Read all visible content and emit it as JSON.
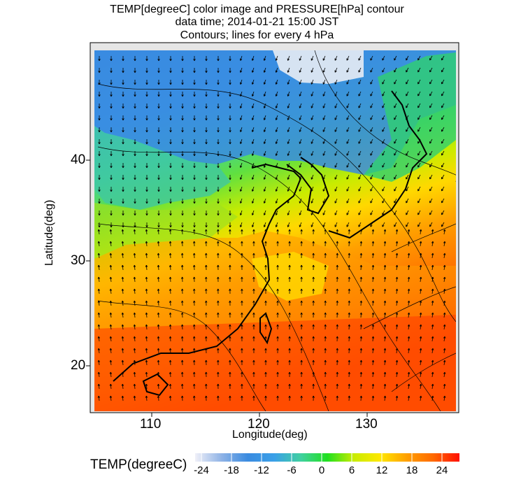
{
  "title": {
    "line1": "TEMP[degreeC] color image and PRESSURE[hPa] contour",
    "line2": "data time; 2014-01-21 15:00 JST",
    "line3": "Contours; lines for every 4 hPa"
  },
  "map": {
    "xlabel": "Longitude(deg)",
    "ylabel": "Latitude(deg)",
    "x_ticks": [
      "110",
      "120",
      "130"
    ],
    "y_ticks": [
      "20",
      "30",
      "40"
    ],
    "lon_range": [
      104.5,
      138.5
    ],
    "lat_range": [
      15.5,
      50.5
    ]
  },
  "legend": {
    "title": "TEMP(degreeC)",
    "ticks": [
      "-24",
      "-18",
      "-12",
      "-6",
      "0",
      "6",
      "12",
      "18",
      "24"
    ],
    "range": [
      -26,
      27
    ],
    "colors": [
      "#f0f0f8",
      "#8fb3e6",
      "#3a8be0",
      "#3aa0e8",
      "#40d0a0",
      "#20e020",
      "#c8ec00",
      "#ffe800",
      "#ffa000",
      "#ff6a00",
      "#ff1000"
    ]
  }
}
